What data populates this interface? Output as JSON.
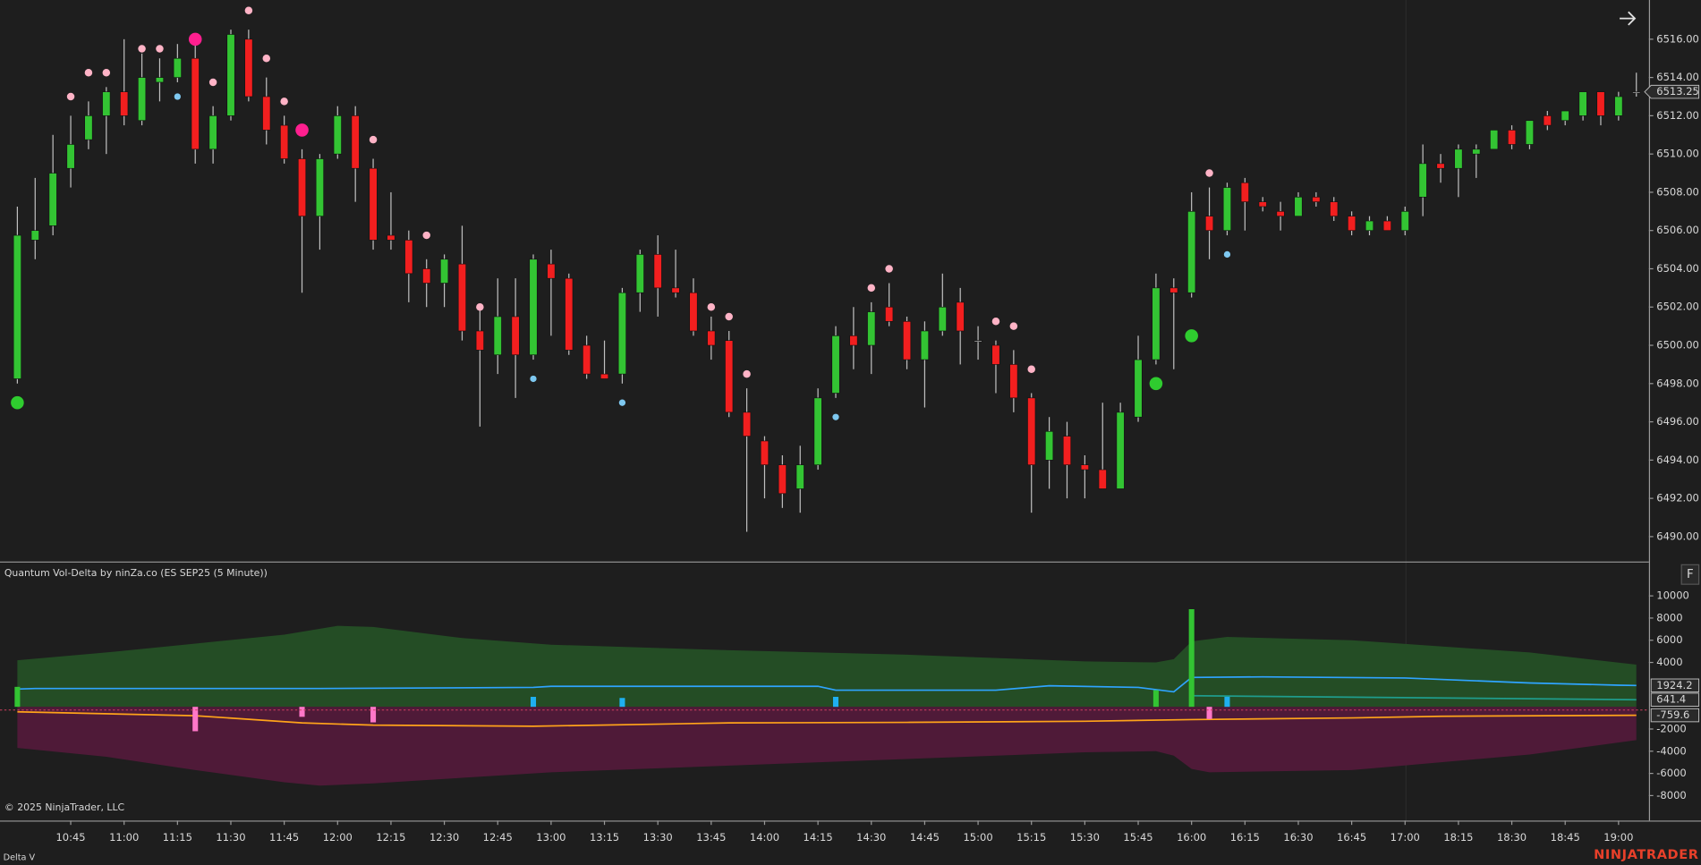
{
  "copyright": "© 2025 NinjaTrader, LLC",
  "panel_label": "Delta V",
  "brand": "NINJATRADER",
  "button": "F",
  "chart_data": [
    {
      "type": "candlestick",
      "up_color": "#33c433",
      "down_color": "#f21f1f",
      "flat_color": "#dddddd",
      "categories": [
        null,
        null,
        null,
        "10:45",
        null,
        null,
        "11:00",
        null,
        null,
        "11:15",
        null,
        null,
        "11:30",
        null,
        null,
        "11:45",
        null,
        null,
        "12:00",
        null,
        null,
        "12:15",
        null,
        null,
        "12:30",
        null,
        null,
        "12:45",
        null,
        null,
        "13:00",
        null,
        null,
        "13:15",
        null,
        null,
        "13:30",
        null,
        null,
        "13:45",
        null,
        null,
        "14:00",
        null,
        null,
        "14:15",
        null,
        null,
        "14:30",
        null,
        null,
        "14:45",
        null,
        null,
        "15:00",
        null,
        null,
        "15:15",
        null,
        null,
        "15:30",
        null,
        null,
        "15:45",
        null,
        null,
        "16:00",
        null,
        null,
        "16:15",
        null,
        null,
        "16:30",
        null,
        null,
        "16:45",
        null,
        null,
        "17:00",
        null,
        null,
        "18:15",
        null,
        null,
        "18:30",
        null,
        null,
        "18:45",
        null,
        null,
        "19:00",
        null
      ],
      "open": [
        6498.25,
        6505.5,
        6506.25,
        6509.25,
        6510.75,
        6512,
        6513.25,
        6511.75,
        6513.75,
        6514,
        6515,
        6510.25,
        6512,
        6516,
        6513,
        6511.5,
        6509.75,
        6506.75,
        6510,
        6512,
        6509.25,
        6505.75,
        6505.5,
        6504,
        6503.25,
        6504.25,
        6500.75,
        6499.5,
        6501.5,
        6499.5,
        6504.25,
        6503.5,
        6500,
        6498.5,
        6498.5,
        6502.75,
        6504.75,
        6503,
        6502.75,
        6500.75,
        6500.25,
        6496.5,
        6495,
        6493.75,
        6492.5,
        6493.75,
        6497.5,
        6500.5,
        6500,
        6502,
        6501.25,
        6499.25,
        6500.75,
        6502.25,
        6500.25,
        6500,
        6499,
        6497.25,
        6494,
        6495.25,
        6493.75,
        6493.5,
        6492.5,
        6496.25,
        6499.25,
        6503,
        6502.75,
        6506.75,
        6506,
        6508.5,
        6507.5,
        6507,
        6506.75,
        6507.75,
        6507.5,
        6506.75,
        6506,
        6506.5,
        6506,
        6507.75,
        6509.5,
        6509.25,
        6510,
        6510.25,
        6511.25,
        6510.5,
        6512,
        6511.75,
        6512,
        6513.25,
        6512,
        6513.25
      ],
      "high": [
        6507.25,
        6508.75,
        6511,
        6512,
        6512.75,
        6513.5,
        6516,
        6515.25,
        6515,
        6515.75,
        6515.75,
        6512.5,
        6516.5,
        6516.5,
        6514,
        6512,
        6510.25,
        6510,
        6512.5,
        6512.5,
        6509.75,
        6508,
        6506,
        6504.5,
        6504.75,
        6506.25,
        6502,
        6503.5,
        6503.5,
        6504.75,
        6505,
        6503.75,
        6500.5,
        6500.25,
        6503,
        6505,
        6505.75,
        6505,
        6503.5,
        6501.5,
        6500.75,
        6497.75,
        6495.25,
        6494.25,
        6494.75,
        6497.75,
        6501,
        6502,
        6502.25,
        6503.25,
        6501.5,
        6501.25,
        6503.75,
        6503,
        6501,
        6500.25,
        6499.75,
        6497.5,
        6496.25,
        6496,
        6494.25,
        6497,
        6497,
        6500.5,
        6503.75,
        6503.5,
        6508,
        6508.25,
        6508.5,
        6508.75,
        6507.75,
        6507.5,
        6508,
        6508,
        6507.75,
        6507,
        6506.75,
        6506.75,
        6507.25,
        6510.5,
        6510,
        6510.5,
        6510.5,
        6511.25,
        6511.5,
        6511.75,
        6512.25,
        6512.25,
        6513.25,
        6513.25,
        6513.25,
        6514.25
      ],
      "low": [
        6498,
        6504.5,
        6505.75,
        6508.25,
        6510.25,
        6510,
        6511.5,
        6511.5,
        6512.75,
        6513.75,
        6509.5,
        6509.5,
        6511.75,
        6512.75,
        6510.5,
        6509.5,
        6502.75,
        6505,
        6509.75,
        6507.5,
        6505,
        6505,
        6502.25,
        6502,
        6502,
        6500.25,
        6495.75,
        6498.5,
        6497.25,
        6499.25,
        6500.5,
        6499.5,
        6498.25,
        6498.25,
        6498,
        6501.75,
        6501.5,
        6502.5,
        6500.5,
        6499.25,
        6496.25,
        6490.25,
        6492,
        6491.5,
        6491.25,
        6493.5,
        6497.25,
        6498.75,
        6498.5,
        6501,
        6498.75,
        6496.75,
        6500.5,
        6499,
        6499.25,
        6497.5,
        6496.5,
        6491.25,
        6492.5,
        6492,
        6492,
        6492.5,
        6492.5,
        6496,
        6499,
        6498.75,
        6502.5,
        6504.5,
        6505.75,
        6506,
        6507,
        6506,
        6506.75,
        6507.25,
        6506.5,
        6505.75,
        6505.75,
        6506,
        6505.75,
        6506.75,
        6508.5,
        6507.75,
        6508.75,
        6510.25,
        6510.25,
        6510.25,
        6511.25,
        6511.5,
        6511.75,
        6511.5,
        6511.75,
        6513
      ],
      "close": [
        6505.75,
        6506,
        6509,
        6510.5,
        6512,
        6513.25,
        6512,
        6514,
        6514,
        6515,
        6510.25,
        6512,
        6516.25,
        6513,
        6511.25,
        6509.75,
        6506.75,
        6509.75,
        6512,
        6509.25,
        6505.5,
        6505.5,
        6503.75,
        6503.25,
        6504.5,
        6500.75,
        6499.75,
        6501.5,
        6499.5,
        6504.5,
        6503.5,
        6499.75,
        6498.5,
        6498.25,
        6502.75,
        6504.75,
        6503,
        6502.75,
        6500.75,
        6500,
        6496.5,
        6495.25,
        6493.75,
        6492.25,
        6493.75,
        6497.25,
        6500.5,
        6500,
        6501.75,
        6501.25,
        6499.25,
        6500.75,
        6502,
        6500.75,
        6500.25,
        6499,
        6497.25,
        6493.75,
        6495.5,
        6493.75,
        6493.5,
        6492.5,
        6496.5,
        6499.25,
        6503,
        6502.75,
        6507,
        6506,
        6508.25,
        6507.5,
        6507.25,
        6506.75,
        6507.75,
        6507.5,
        6506.75,
        6506,
        6506.5,
        6506,
        6507,
        6509.5,
        6509.25,
        6510.25,
        6510.25,
        6511.25,
        6510.5,
        6511.75,
        6511.5,
        6512.25,
        6513.25,
        6512,
        6513,
        6513.25
      ],
      "last_price": 6513.25,
      "ylim": [
        6488.7,
        6518.05
      ],
      "yticks": [
        {
          "value": 6490,
          "label": "6490.00"
        },
        {
          "value": 6492,
          "label": "6492.00"
        },
        {
          "value": 6494,
          "label": "6494.00"
        },
        {
          "value": 6496,
          "label": "6496.00"
        },
        {
          "value": 6498,
          "label": "6498.00"
        },
        {
          "value": 6500,
          "label": "6500.00"
        },
        {
          "value": 6502,
          "label": "6502.00"
        },
        {
          "value": 6504,
          "label": "6504.00"
        },
        {
          "value": 6506,
          "label": "6506.00"
        },
        {
          "value": 6508,
          "label": "6508.00"
        },
        {
          "value": 6510,
          "label": "6510.00"
        },
        {
          "value": 6512,
          "label": "6512.00"
        },
        {
          "value": 6514,
          "label": "6514.00"
        },
        {
          "value": 6516,
          "label": "6516.00"
        }
      ],
      "markers": [
        {
          "color": "#ffb3c6",
          "radius": 3.5,
          "points": [
            [
              3,
              6513
            ],
            [
              4,
              6514.25
            ],
            [
              5,
              6514.25
            ],
            [
              7,
              6515.5
            ],
            [
              8,
              6515.5
            ],
            [
              11,
              6513.75
            ],
            [
              13,
              6517.5
            ],
            [
              14,
              6515
            ],
            [
              15,
              6512.75
            ],
            [
              20,
              6510.75
            ],
            [
              23,
              6505.75
            ],
            [
              26,
              6502
            ],
            [
              39,
              6502
            ],
            [
              40,
              6501.5
            ],
            [
              41,
              6498.5
            ],
            [
              48,
              6503
            ],
            [
              49,
              6504
            ],
            [
              55,
              6501.25
            ],
            [
              56,
              6501
            ],
            [
              57,
              6498.75
            ],
            [
              67,
              6509
            ]
          ]
        },
        {
          "color": "#7ec8f0",
          "radius": 3,
          "points": [
            [
              9,
              6513
            ],
            [
              29,
              6498.25
            ],
            [
              34,
              6497
            ],
            [
              46,
              6496.25
            ],
            [
              68,
              6504.75
            ]
          ]
        },
        {
          "color": "#ff1f8f",
          "radius": 6,
          "points": [
            [
              10,
              6516
            ],
            [
              16,
              6511.25
            ]
          ]
        },
        {
          "color": "#2fcc2f",
          "radius": 6,
          "points": [
            [
              0,
              6497
            ],
            [
              64,
              6498
            ],
            [
              66,
              6500.5
            ]
          ]
        }
      ]
    },
    {
      "type": "indicator",
      "title": "Quantum Vol-Delta by ninZa.co (ES SEP25 (5 Minute))",
      "ylim": [
        -10250,
        13000
      ],
      "yticks": [
        10000,
        8000,
        6000,
        4000,
        -2000,
        -4000,
        -6000,
        -8000
      ],
      "series": [
        {
          "style": "area",
          "color": "#244d25",
          "x": [
            0,
            5,
            10,
            15,
            18,
            20,
            25,
            30,
            40,
            50,
            60,
            64,
            65,
            66,
            68,
            75,
            85,
            91
          ],
          "values": [
            4200,
            4900,
            5700,
            6500,
            7300,
            7200,
            6200,
            5600,
            5100,
            4700,
            4100,
            4000,
            4300,
            5900,
            6300,
            6000,
            4900,
            3800
          ]
        },
        {
          "style": "area",
          "color": "#4f1a38",
          "x": [
            0,
            5,
            10,
            15,
            17,
            20,
            25,
            30,
            40,
            50,
            60,
            64,
            65,
            66,
            67,
            75,
            85,
            91
          ],
          "values": [
            -3700,
            -4500,
            -5700,
            -6800,
            -7100,
            -6900,
            -6400,
            -5900,
            -5300,
            -4700,
            -4100,
            -4000,
            -4400,
            -5600,
            -5900,
            -5700,
            -4300,
            -3000
          ]
        },
        {
          "style": "line",
          "color": "#1f9c8c",
          "x": [
            66,
            80,
            91
          ],
          "values": [
            1000,
            800,
            641.4
          ]
        },
        {
          "style": "line",
          "color": "#2fa4ff",
          "x": [
            0,
            1,
            17,
            29,
            30,
            45,
            46,
            55,
            58,
            63,
            65,
            66,
            70,
            78,
            85,
            90,
            91
          ],
          "values": [
            1600,
            1650,
            1650,
            1750,
            1850,
            1850,
            1500,
            1500,
            1900,
            1750,
            1350,
            2650,
            2700,
            2600,
            2150,
            1950,
            1924.2
          ]
        },
        {
          "style": "line",
          "color": "#ffa31a",
          "x": [
            0,
            10,
            16,
            20,
            29,
            40,
            50,
            60,
            66,
            75,
            80,
            91
          ],
          "values": [
            -450,
            -800,
            -1450,
            -1650,
            -1750,
            -1450,
            -1400,
            -1300,
            -1150,
            -1000,
            -850,
            -759.6
          ]
        }
      ],
      "bars": {
        "x": [
          0,
          10,
          16,
          20,
          29,
          34,
          46,
          64,
          66,
          67,
          68
        ],
        "values": [
          1800,
          -2200,
          -900,
          -1400,
          900,
          800,
          900,
          1500,
          8800,
          -1100,
          900
        ],
        "colors": [
          "#33c433",
          "#ff77c8",
          "#ff77c8",
          "#ff77c8",
          "#1fb0f0",
          "#1fb0f0",
          "#1fb0f0",
          "#33c433",
          "#33c433",
          "#ff77c8",
          "#1fb0f0"
        ]
      }
    }
  ]
}
